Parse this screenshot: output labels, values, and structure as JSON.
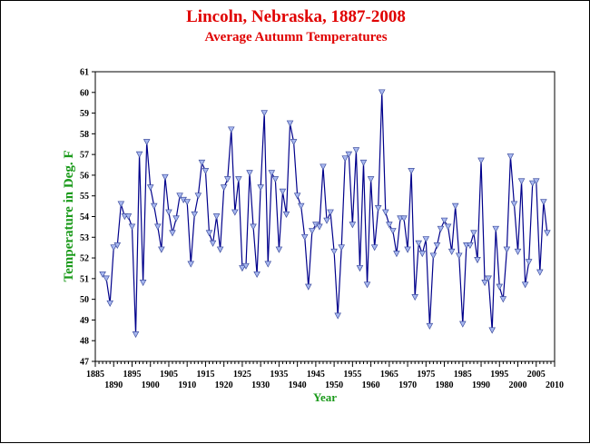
{
  "chart_data": {
    "type": "line",
    "title": "Lincoln, Nebraska, 1887-2008",
    "subtitle": "Average Autumn Temperatures",
    "xlabel": "Year",
    "ylabel": "Temperature in Deg. F",
    "xlim": [
      1885,
      2010
    ],
    "ylim": [
      47,
      61
    ],
    "x_ticks_top": [
      "1885",
      "1895",
      "1905",
      "1915",
      "1925",
      "1935",
      "1945",
      "1955",
      "1965",
      "1975",
      "1985",
      "1995",
      "2005"
    ],
    "x_ticks_bottom": [
      "1890",
      "1900",
      "1910",
      "1920",
      "1930",
      "1940",
      "1950",
      "1960",
      "1970",
      "1980",
      "1990",
      "2000",
      "2010"
    ],
    "y_ticks": [
      "47",
      "48",
      "49",
      "50",
      "51",
      "52",
      "53",
      "54",
      "55",
      "56",
      "57",
      "58",
      "59",
      "60",
      "61"
    ],
    "grid": false,
    "colors": {
      "line": "#00008b",
      "marker_fill": "#a8b8f0",
      "title": "#e00000",
      "axis_label": "#1a9a1a"
    },
    "x": [
      1887,
      1888,
      1889,
      1890,
      1891,
      1892,
      1893,
      1894,
      1895,
      1896,
      1897,
      1898,
      1899,
      1900,
      1901,
      1902,
      1903,
      1904,
      1905,
      1906,
      1907,
      1908,
      1909,
      1910,
      1911,
      1912,
      1913,
      1914,
      1915,
      1916,
      1917,
      1918,
      1919,
      1920,
      1921,
      1922,
      1923,
      1924,
      1925,
      1926,
      1927,
      1928,
      1929,
      1930,
      1931,
      1932,
      1933,
      1934,
      1935,
      1936,
      1937,
      1938,
      1939,
      1940,
      1941,
      1942,
      1943,
      1944,
      1945,
      1946,
      1947,
      1948,
      1949,
      1950,
      1951,
      1952,
      1953,
      1954,
      1955,
      1956,
      1957,
      1958,
      1959,
      1960,
      1961,
      1962,
      1963,
      1964,
      1965,
      1966,
      1967,
      1968,
      1969,
      1970,
      1971,
      1972,
      1973,
      1974,
      1975,
      1976,
      1977,
      1978,
      1979,
      1980,
      1981,
      1982,
      1983,
      1984,
      1985,
      1986,
      1987,
      1988,
      1989,
      1990,
      1991,
      1992,
      1993,
      1994,
      1995,
      1996,
      1997,
      1998,
      1999,
      2000,
      2001,
      2002,
      2003,
      2004,
      2005,
      2006,
      2007,
      2008
    ],
    "values": [
      51.2,
      51.0,
      49.8,
      52.5,
      52.6,
      54.6,
      54.0,
      54.0,
      53.5,
      48.3,
      57.0,
      50.8,
      57.6,
      55.4,
      54.5,
      53.5,
      52.4,
      55.9,
      54.2,
      53.2,
      53.9,
      55.0,
      54.8,
      54.7,
      51.7,
      54.1,
      55.0,
      56.6,
      56.2,
      53.2,
      52.7,
      54.0,
      52.4,
      55.4,
      55.8,
      58.2,
      54.2,
      55.8,
      51.5,
      51.6,
      56.1,
      53.5,
      51.2,
      55.4,
      59.0,
      51.7,
      56.1,
      55.8,
      52.4,
      55.2,
      54.1,
      58.5,
      57.6,
      55.0,
      54.5,
      53.0,
      50.6,
      53.3,
      53.6,
      53.5,
      56.4,
      53.8,
      54.2,
      52.3,
      49.2,
      52.5,
      56.8,
      57.0,
      53.6,
      57.2,
      51.5,
      56.6,
      50.7,
      55.8,
      52.5,
      54.4,
      60.0,
      54.2,
      53.6,
      53.3,
      52.2,
      53.9,
      53.9,
      52.4,
      56.2,
      50.1,
      52.7,
      52.2,
      52.9,
      48.7,
      52.1,
      52.6,
      53.4,
      53.8,
      53.5,
      52.3,
      54.5,
      52.1,
      48.8,
      52.6,
      52.6,
      53.2,
      51.9,
      56.7,
      50.8,
      51.0,
      48.5,
      53.4,
      50.6,
      50.0,
      52.4,
      56.9,
      54.6,
      52.3,
      55.7,
      50.7,
      51.8,
      55.6,
      55.7,
      51.3,
      54.7,
      53.2
    ]
  }
}
